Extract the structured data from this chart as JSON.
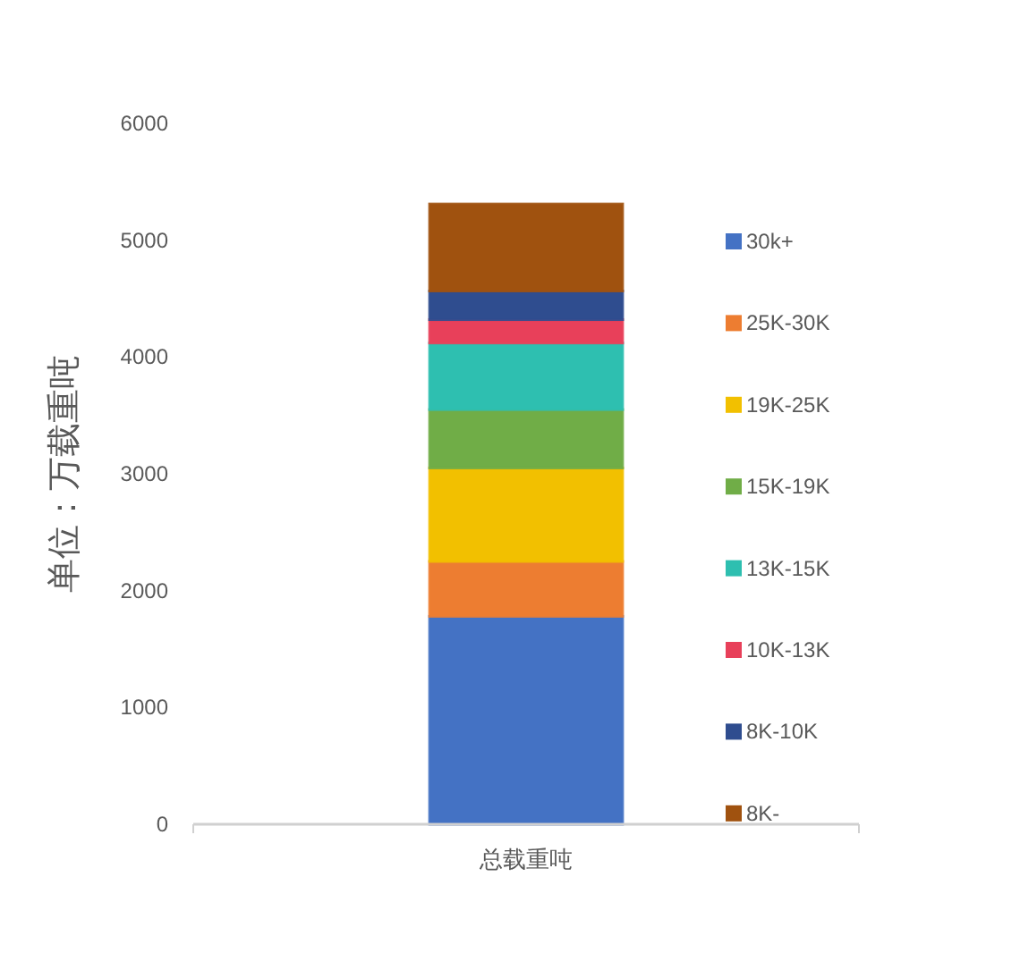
{
  "chart_data": {
    "type": "bar",
    "stacked": true,
    "categories": [
      "总载重吨"
    ],
    "ylabel": "单位：万载重吨",
    "ylim": [
      0,
      6000
    ],
    "yticks": [
      0,
      1000,
      2000,
      3000,
      4000,
      5000,
      6000
    ],
    "grid": false,
    "legend": "right",
    "series": [
      {
        "name": "30k+",
        "color": "#4472c4",
        "values": [
          1780
        ]
      },
      {
        "name": "25K-30K",
        "color": "#ed7d31",
        "values": [
          470
        ]
      },
      {
        "name": "19K-25K",
        "color": "#f2c000",
        "values": [
          800
        ]
      },
      {
        "name": "15K-19K",
        "color": "#70ad47",
        "values": [
          500
        ]
      },
      {
        "name": "13K-15K",
        "color": "#2ebfb0",
        "values": [
          570
        ]
      },
      {
        "name": "10K-13K",
        "color": "#e8405a",
        "values": [
          200
        ]
      },
      {
        "name": "8K-10K",
        "color": "#2f4d8f",
        "values": [
          245
        ]
      },
      {
        "name": "8K-",
        "color": "#a0520f",
        "values": [
          745
        ]
      }
    ]
  }
}
